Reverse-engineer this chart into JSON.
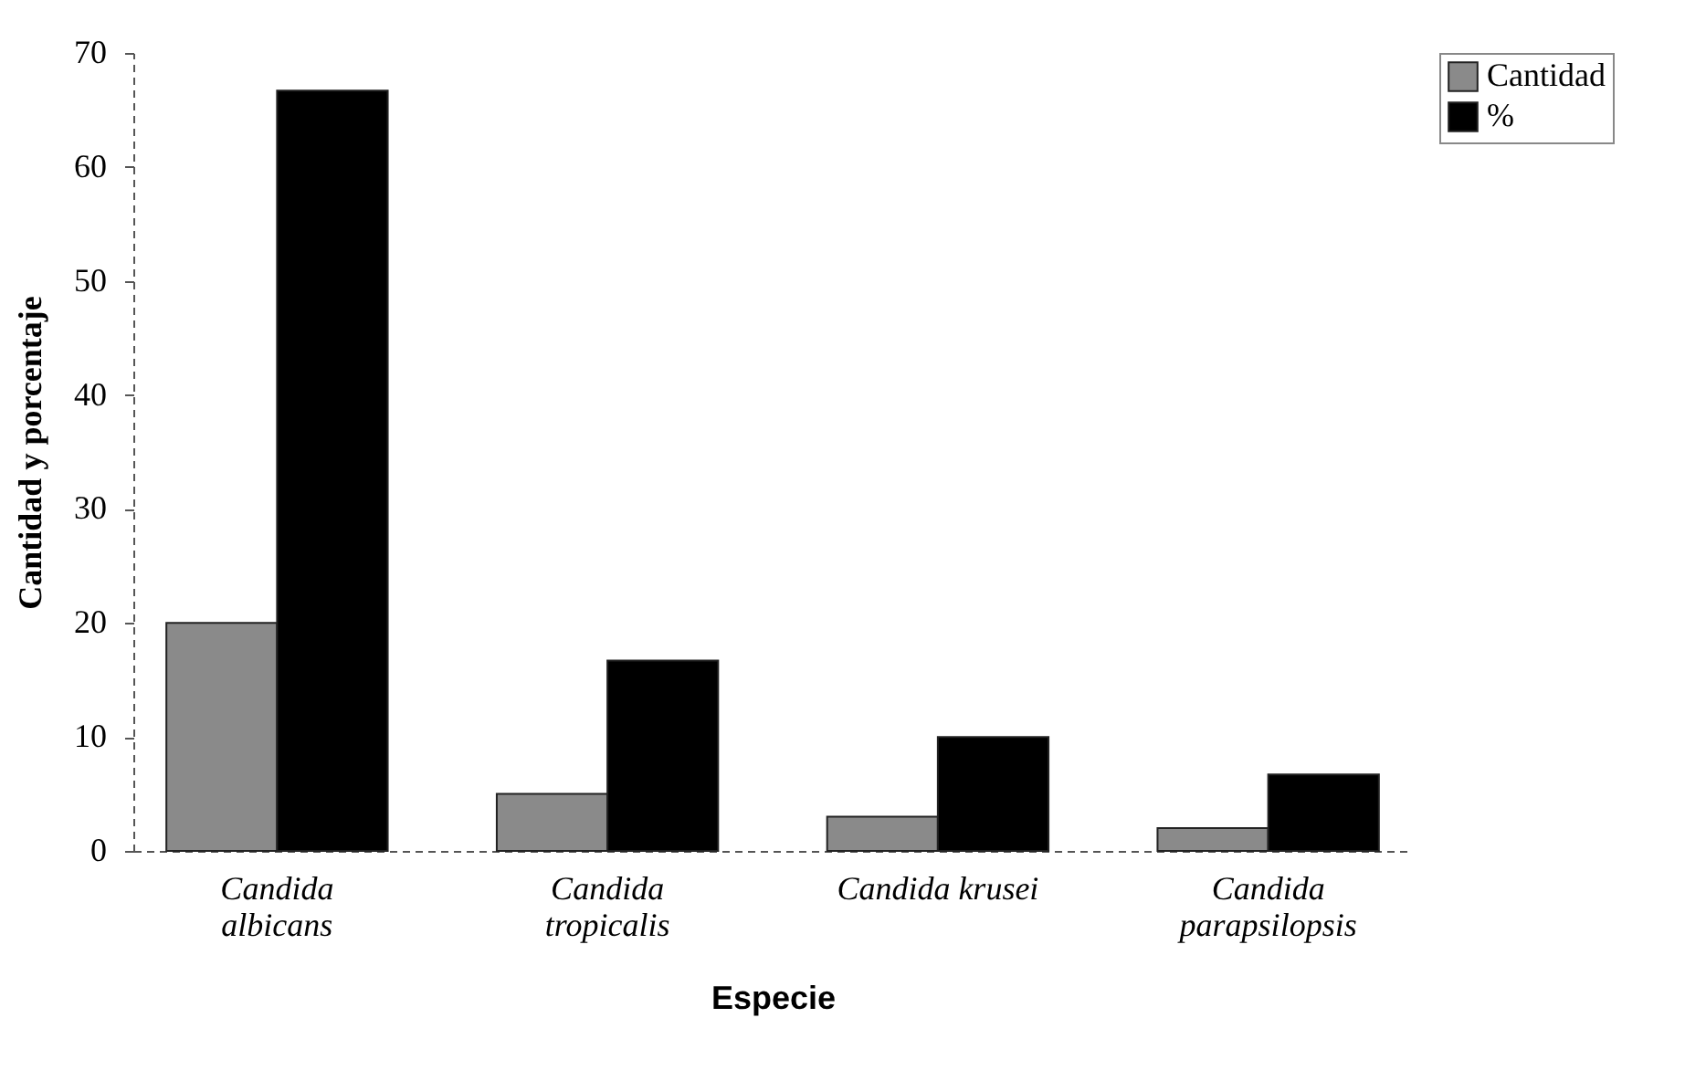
{
  "chart_data": {
    "type": "bar",
    "xlabel": "Especie",
    "ylabel": "Cantidad y porcentaje",
    "categories": [
      "Candida albicans",
      "Candida tropicalis",
      "Candida krusei",
      "Candida parapsilopsis"
    ],
    "series": [
      {
        "name": "Cantidad",
        "color": "#8a8a8a",
        "values": [
          20,
          5,
          3,
          2
        ]
      },
      {
        "name": "%",
        "color": "#000000",
        "values": [
          66.7,
          16.7,
          10,
          6.7
        ]
      }
    ],
    "ylim": [
      0,
      70
    ],
    "yticks": [
      0,
      10,
      20,
      30,
      40,
      50,
      60,
      70
    ],
    "legend": "right"
  }
}
